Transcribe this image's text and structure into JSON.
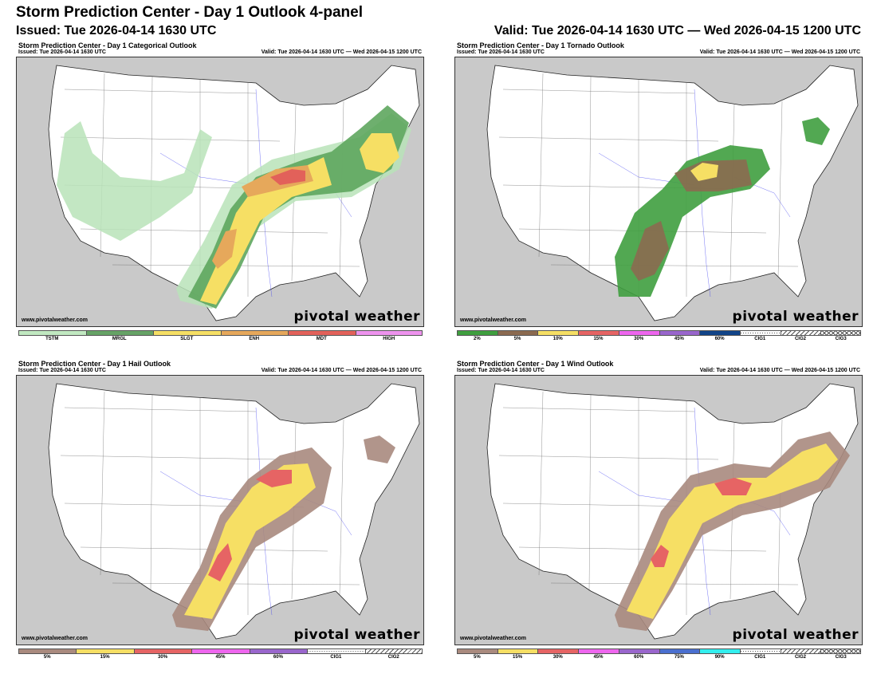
{
  "header": {
    "title": "Storm Prediction Center - Day 1 Outlook 4-panel",
    "issued": "Issued: Tue 2026-04-14 1630 UTC",
    "valid": "Valid: Tue 2026-04-14 1630 UTC — Wed 2026-04-15 1200 UTC"
  },
  "panels": [
    {
      "title": "Storm Prediction Center - Day 1 Categorical Outlook",
      "issued": "Issued: Tue 2026-04-14 1630 UTC",
      "valid": "Valid: Tue 2026-04-14 1630 UTC — Wed 2026-04-15 1200 UTC",
      "url": "www.pivotalweather.com",
      "brand": "pivotal weather",
      "legend": [
        {
          "label": "TSTM",
          "color": "#c1e9c1"
        },
        {
          "label": "MRGL",
          "color": "#66a366"
        },
        {
          "label": "SLGT",
          "color": "#f6df64"
        },
        {
          "label": "ENH",
          "color": "#e6a85b"
        },
        {
          "label": "MDT",
          "color": "#e2615a"
        },
        {
          "label": "HIGH",
          "color": "#ee93ee"
        }
      ]
    },
    {
      "title": "Storm Prediction Center - Day 1 Tornado Outlook",
      "issued": "Issued: Tue 2026-04-14 1630 UTC",
      "valid": "Valid: Tue 2026-04-14 1630 UTC — Wed 2026-04-15 1200 UTC",
      "url": "www.pivotalweather.com",
      "brand": "pivotal weather",
      "legend": [
        {
          "label": "2%",
          "color": "#3f9f3f"
        },
        {
          "label": "5%",
          "color": "#8b6a50"
        },
        {
          "label": "10%",
          "color": "#f6df64"
        },
        {
          "label": "15%",
          "color": "#e66464"
        },
        {
          "label": "30%",
          "color": "#ee66ee"
        },
        {
          "label": "45%",
          "color": "#9966cc"
        },
        {
          "label": "60%",
          "color": "#114488"
        },
        {
          "label": "CIG1",
          "color": "dots"
        },
        {
          "label": "CIG2",
          "color": "slash"
        },
        {
          "label": "CIG3",
          "color": "cross"
        }
      ]
    },
    {
      "title": "Storm Prediction Center - Day 1 Hail Outlook",
      "issued": "Issued: Tue 2026-04-14 1630 UTC",
      "valid": "Valid: Tue 2026-04-14 1630 UTC — Wed 2026-04-15 1200 UTC",
      "url": "www.pivotalweather.com",
      "brand": "pivotal weather",
      "legend": [
        {
          "label": "5%",
          "color": "#a98a7e"
        },
        {
          "label": "15%",
          "color": "#f6df64"
        },
        {
          "label": "30%",
          "color": "#e66464"
        },
        {
          "label": "45%",
          "color": "#ee66ee"
        },
        {
          "label": "60%",
          "color": "#9966cc"
        },
        {
          "label": "CIG1",
          "color": "dots"
        },
        {
          "label": "CIG2",
          "color": "slash"
        }
      ]
    },
    {
      "title": "Storm Prediction Center - Day 1 Wind Outlook",
      "issued": "Issued: Tue 2026-04-14 1630 UTC",
      "valid": "Valid: Tue 2026-04-14 1630 UTC — Wed 2026-04-15 1200 UTC",
      "url": "www.pivotalweather.com",
      "brand": "pivotal weather",
      "legend": [
        {
          "label": "5%",
          "color": "#a98a7e"
        },
        {
          "label": "15%",
          "color": "#f6df64"
        },
        {
          "label": "30%",
          "color": "#e66464"
        },
        {
          "label": "45%",
          "color": "#ee66ee"
        },
        {
          "label": "60%",
          "color": "#9966cc"
        },
        {
          "label": "75%",
          "color": "#4a6fcf"
        },
        {
          "label": "90%",
          "color": "#33eeee"
        },
        {
          "label": "CIG1",
          "color": "dots"
        },
        {
          "label": "CIG2",
          "color": "slash"
        },
        {
          "label": "CIG3",
          "color": "cross"
        }
      ]
    }
  ]
}
